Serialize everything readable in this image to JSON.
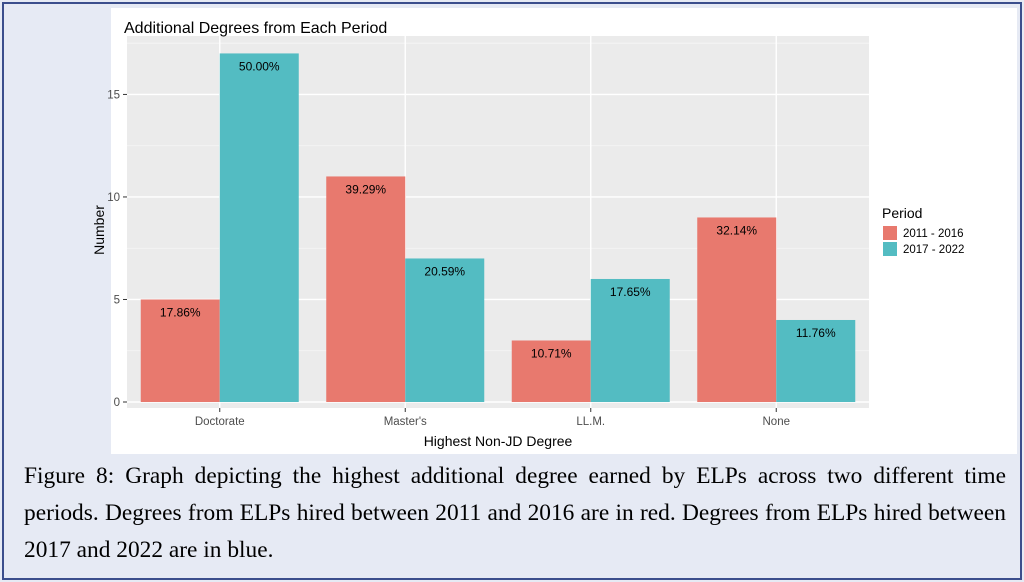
{
  "chart_data": {
    "type": "bar",
    "title": "Additional Degrees from Each Period",
    "xlabel": "Highest Non-JD Degree",
    "ylabel": "Number",
    "categories": [
      "Doctorate",
      "Master's",
      "LL.M.",
      "None"
    ],
    "series": [
      {
        "name": "2011 - 2016",
        "color": "#e8796e",
        "values": [
          5,
          11,
          3,
          9
        ],
        "labels": [
          "17.86%",
          "39.29%",
          "10.71%",
          "32.14%"
        ]
      },
      {
        "name": "2017 - 2022",
        "color": "#53bcc2",
        "values": [
          17,
          7,
          6,
          4
        ],
        "labels": [
          "50.00%",
          "20.59%",
          "17.65%",
          "11.76%"
        ]
      }
    ],
    "ylim": [
      0,
      17.85
    ],
    "yticks": [
      0,
      5,
      10,
      15
    ],
    "legend_title": "Period",
    "legend_position": "right",
    "grid": true
  },
  "caption": "Figure 8: Graph depicting the highest additional degree earned by ELPs across two different time periods. Degrees from ELPs hired between 2011 and 2016 are in red. Degrees from ELPs hired between 2017 and 2022 are in blue."
}
